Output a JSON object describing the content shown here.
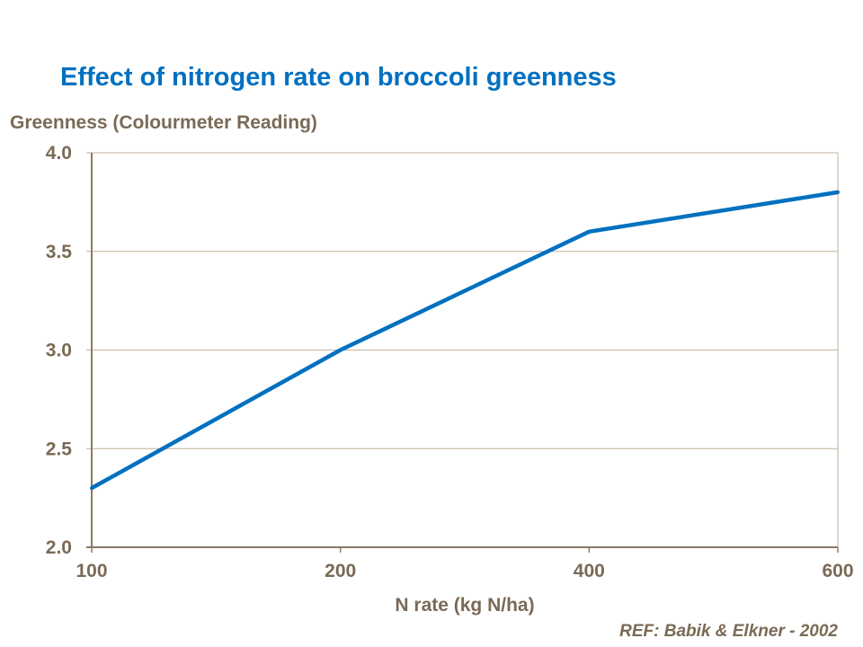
{
  "chart_data": {
    "type": "line",
    "title": "Effect of nitrogen rate on broccoli greenness",
    "ylabel": "Greenness (Colourmeter Reading)",
    "xlabel": "N rate (kg N/ha)",
    "categories": [
      "100",
      "200",
      "400",
      "600"
    ],
    "values": [
      2.3,
      3.0,
      3.6,
      3.8
    ],
    "ylim": [
      2.0,
      4.0
    ],
    "yticks": [
      "2.0",
      "2.5",
      "3.0",
      "3.5",
      "4.0"
    ],
    "grid": true,
    "legend": "none",
    "line_color": "#0070c0"
  },
  "footer": {
    "reference": "REF: Babik & Elkner - 2002"
  }
}
